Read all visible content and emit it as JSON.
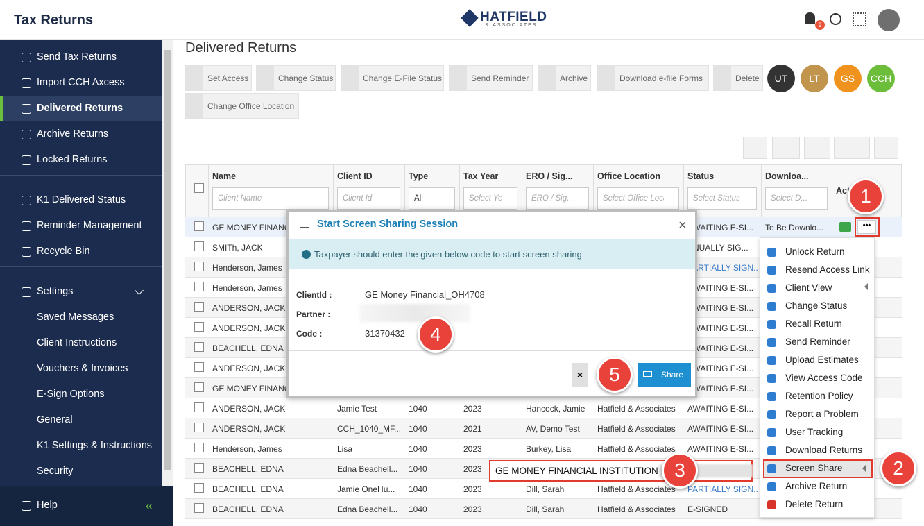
{
  "header": {
    "title": "Tax Returns",
    "logo": "HATFIELD",
    "logo_sub": "& ASSOCIATES",
    "notifications": "9"
  },
  "sidebar": {
    "main": [
      "Send Tax Returns",
      "Import CCH Axcess",
      "Delivered Returns",
      "Archive Returns",
      "Locked Returns"
    ],
    "secondary": [
      "K1 Delivered Status",
      "Reminder Management",
      "Recycle Bin"
    ],
    "settings": "Settings",
    "settings_items": [
      "Saved Messages",
      "Client Instructions",
      "Vouchers & Invoices",
      "E-Sign Options",
      "General",
      "K1 Settings & Instructions",
      "Security"
    ],
    "help": "Help"
  },
  "page": {
    "title": "Delivered Returns",
    "actions": [
      "Set Access",
      "Change Status",
      "Change E-File Status",
      "Send Reminder",
      "Archive",
      "Download e-file Forms",
      "Delete",
      "Change Office Location"
    ],
    "users": [
      "UT",
      "LT",
      "GS",
      "CCH"
    ]
  },
  "table": {
    "columns": [
      "Name",
      "Client ID",
      "Type",
      "Tax Year",
      "ERO / Sig...",
      "Office Location",
      "Status",
      "Downloa...",
      "Actions"
    ],
    "filters": [
      "Client Name",
      "Client Id",
      "All",
      "Select Year...",
      "ERO / Sig...",
      "Select Office Locatio",
      "Select Status",
      "Select D..."
    ],
    "rows": [
      [
        "GE MONEY FINANC",
        null,
        null,
        null,
        null,
        null,
        "AWAITING E-SI...",
        "To Be Downlo..."
      ],
      [
        "SMITh, JACK",
        null,
        null,
        null,
        null,
        null,
        "ANUALLY SIG...",
        null
      ],
      [
        "Henderson, James",
        null,
        null,
        null,
        null,
        null,
        "PARTIALLY SIGN...",
        null
      ],
      [
        "Henderson, James",
        null,
        null,
        null,
        null,
        null,
        "AWAITING E-SI...",
        null
      ],
      [
        "ANDERSON, JACK",
        null,
        null,
        null,
        null,
        null,
        "AWAITING E-SI...",
        null
      ],
      [
        "ANDERSON, JACK",
        null,
        null,
        null,
        null,
        null,
        "AWAITING E-SI...",
        null
      ],
      [
        "BEACHELL, EDNA",
        null,
        null,
        null,
        null,
        null,
        "AWAITING E-SI...",
        null
      ],
      [
        "ANDERSON, JACK",
        null,
        null,
        null,
        null,
        null,
        "AWAITING E-SI...",
        null
      ],
      [
        "GE MONEY FINANC",
        null,
        null,
        null,
        null,
        null,
        "AWAITING E-SI...",
        null
      ],
      [
        "ANDERSON, JACK",
        "Jamie Test",
        "1040",
        "2023",
        "Hancock, Jamie",
        "Hatfield & Associates",
        "AWAITING E-SI...",
        null
      ],
      [
        "ANDERSON, JACK",
        "CCH_1040_MF...",
        "1040",
        "2021",
        "AV, Demo Test",
        "Hatfield & Associates",
        "AWAITING E-SI...",
        null
      ],
      [
        "Henderson, James",
        "Lisa",
        "1040",
        "2023",
        "Burkey, Lisa",
        "Hatfield & Associates",
        "AWAITING E-SI...",
        null
      ],
      [
        "BEACHELL, EDNA",
        "Edna Beachell...",
        "1040",
        "2023",
        null,
        null,
        null,
        null
      ],
      [
        "BEACHELL, EDNA",
        "Jamie OneHu...",
        "1040",
        "2023",
        "Dill, Sarah",
        "Hatfield & Associates",
        "PARTIALLY SIGN...",
        null
      ],
      [
        "BEACHELL, EDNA",
        "Edna Beachell...",
        "1040",
        "2023",
        "Dill, Sarah",
        "Hatfield & Associates",
        "E-SIGNED",
        null
      ]
    ]
  },
  "modal": {
    "title": "Start Screen Sharing Session",
    "info": "Taxpayer should enter the given below code to start screen sharing",
    "fields": [
      {
        "label": "ClientId :",
        "value": "GE Money Financial_OH4708"
      },
      {
        "label": "Partner :",
        "value": null
      },
      {
        "label": "Code :",
        "value": "31370432"
      }
    ],
    "button": "Share"
  },
  "menu": {
    "items": [
      "Unlock Return",
      "Resend Access Link",
      "Client View",
      "Change Status",
      "Recall Return",
      "Send Reminder",
      "Upload Estimates",
      "View Access Code",
      "Retention Policy",
      "Report a Problem",
      "User Tracking",
      "Download Returns",
      "Screen Share",
      "Archive Return",
      "Delete Return"
    ]
  },
  "tooltip": "GE MONEY FINANCIAL INSTITUTION",
  "callouts": [
    "1",
    "2",
    "3",
    "4",
    "5"
  ]
}
